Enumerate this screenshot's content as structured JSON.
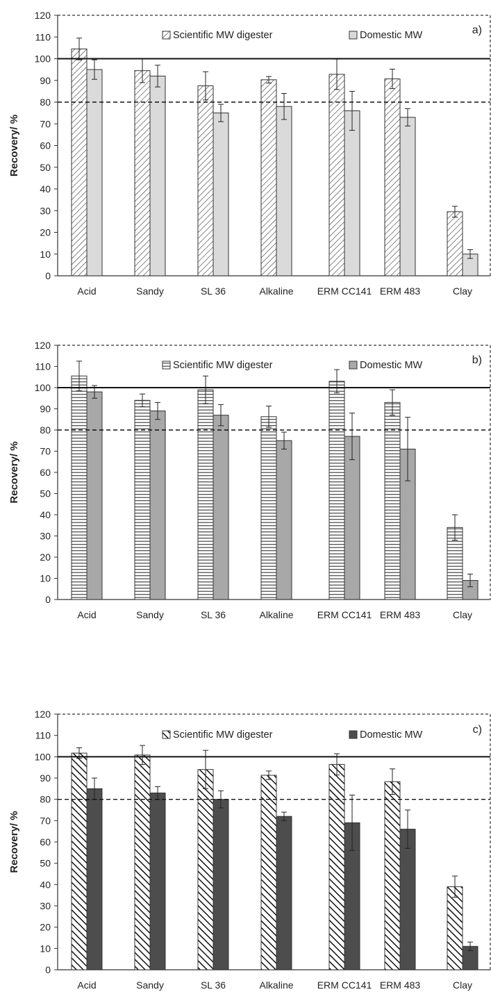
{
  "chart_data": [
    {
      "type": "bar",
      "panel_label": "a)",
      "categories": [
        "Acid",
        "Sandy",
        "SL 36",
        "Alkaline",
        "ERM CC141",
        "ERM 483",
        "Clay"
      ],
      "ylabel": "Recovery/ %",
      "xlabel": "",
      "ylim": [
        0,
        120
      ],
      "yticks": [
        0,
        10,
        20,
        30,
        40,
        50,
        60,
        70,
        80,
        90,
        100,
        110,
        120
      ],
      "grid": false,
      "legend_position": "top",
      "reference_lines": [
        {
          "y": 100,
          "style": "solid"
        },
        {
          "y": 80,
          "style": "dashed"
        }
      ],
      "series": [
        {
          "name": "Scientific MW digester",
          "pattern": "diagonal-up",
          "color": "#ffffff",
          "values": [
            104.5,
            94.5,
            87.5,
            90.3,
            92.8,
            90.7,
            29.5
          ],
          "errors": [
            5,
            5.5,
            6.5,
            1.5,
            7,
            4.5,
            2.5
          ]
        },
        {
          "name": "Domestic MW",
          "pattern": "solid",
          "color": "#dadada",
          "values": [
            95,
            92,
            75,
            78,
            76,
            73,
            10
          ],
          "errors": [
            4.5,
            5,
            4,
            6,
            9,
            4,
            2
          ]
        }
      ]
    },
    {
      "type": "bar",
      "panel_label": "b)",
      "categories": [
        "Acid",
        "Sandy",
        "SL 36",
        "Alkaline",
        "ERM CC141",
        "ERM 483",
        "Clay"
      ],
      "ylabel": "Recovery/ %",
      "xlabel": "",
      "ylim": [
        0,
        120
      ],
      "yticks": [
        0,
        10,
        20,
        30,
        40,
        50,
        60,
        70,
        80,
        90,
        100,
        110,
        120
      ],
      "grid": false,
      "legend_position": "top",
      "reference_lines": [
        {
          "y": 100,
          "style": "solid"
        },
        {
          "y": 80,
          "style": "dashed"
        }
      ],
      "series": [
        {
          "name": "Scientific MW digester",
          "pattern": "horizontal",
          "color": "#ffffff",
          "values": [
            105.5,
            94,
            99,
            86.3,
            103,
            93,
            34
          ],
          "errors": [
            7,
            3,
            6.5,
            5,
            5.5,
            6,
            6
          ]
        },
        {
          "name": "Domestic MW",
          "pattern": "solid",
          "color": "#a8a8a8",
          "values": [
            98,
            89,
            87,
            75,
            77,
            71,
            9
          ],
          "errors": [
            3,
            4,
            5,
            4,
            11,
            15,
            3
          ]
        }
      ]
    },
    {
      "type": "bar",
      "panel_label": "c)",
      "categories": [
        "Acid",
        "Sandy",
        "SL 36",
        "Alkaline",
        "ERM CC141",
        "ERM 483",
        "Clay"
      ],
      "ylabel": "Recovery/ %",
      "xlabel": "",
      "ylim": [
        0,
        120
      ],
      "yticks": [
        0,
        10,
        20,
        30,
        40,
        50,
        60,
        70,
        80,
        90,
        100,
        110,
        120
      ],
      "grid": false,
      "legend_position": "top",
      "reference_lines": [
        {
          "y": 100,
          "style": "solid"
        },
        {
          "y": 80,
          "style": "dashed"
        }
      ],
      "series": [
        {
          "name": "Scientific MW digester",
          "pattern": "diagonal-down",
          "color": "#ffffff",
          "values": [
            101.7,
            100.8,
            94,
            91.3,
            96.4,
            88.3,
            39
          ],
          "errors": [
            2.5,
            4.5,
            9,
            2,
            5,
            6,
            5
          ]
        },
        {
          "name": "Domestic MW",
          "pattern": "solid",
          "color": "#4d4d4d",
          "values": [
            85,
            83,
            80,
            72,
            69,
            66,
            11
          ],
          "errors": [
            5,
            3,
            4,
            2,
            13,
            9,
            2
          ]
        }
      ]
    }
  ]
}
